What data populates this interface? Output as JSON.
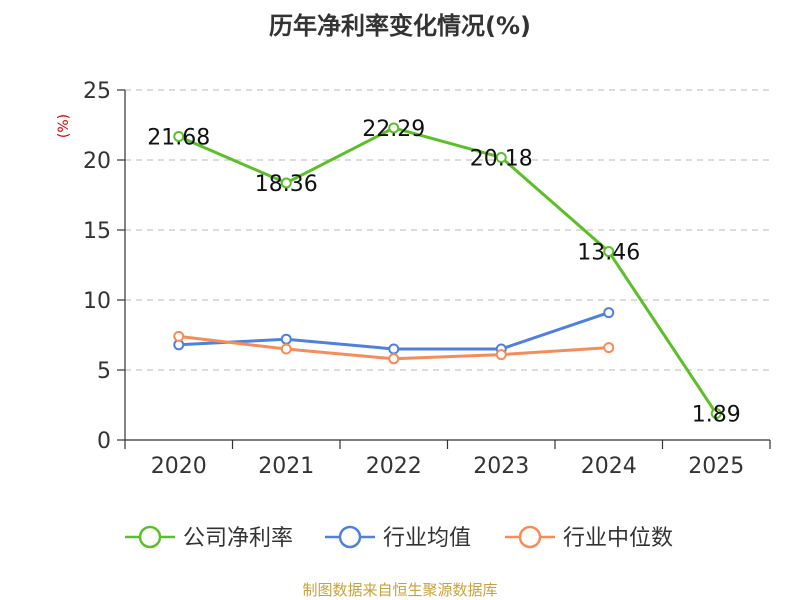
{
  "chart_data": {
    "type": "line",
    "title": "历年净利率变化情况(%)",
    "ylabel": "(%)",
    "xlabel": "",
    "categories": [
      "2020",
      "2021",
      "2022",
      "2023",
      "2024",
      "2025"
    ],
    "ylim": [
      0,
      25
    ],
    "yticks": [
      "0",
      "5",
      "10",
      "15",
      "20",
      "25"
    ],
    "grid": true,
    "legend_position": "bottom",
    "series": [
      {
        "name": "公司净利率",
        "color": "#5cbf2a",
        "values": [
          21.68,
          18.36,
          22.29,
          20.18,
          13.46,
          1.89
        ],
        "labels": [
          "21.68",
          "18.36",
          "22.29",
          "20.18",
          "13.46",
          "1.89"
        ]
      },
      {
        "name": "行业均值",
        "color": "#4f80dc",
        "values": [
          6.8,
          7.2,
          6.5,
          6.5,
          9.1,
          null
        ]
      },
      {
        "name": "行业中位数",
        "color": "#f68c5a",
        "values": [
          7.4,
          6.5,
          5.8,
          6.1,
          6.6,
          null
        ]
      }
    ],
    "source": "制图数据来自恒生聚源数据库"
  }
}
